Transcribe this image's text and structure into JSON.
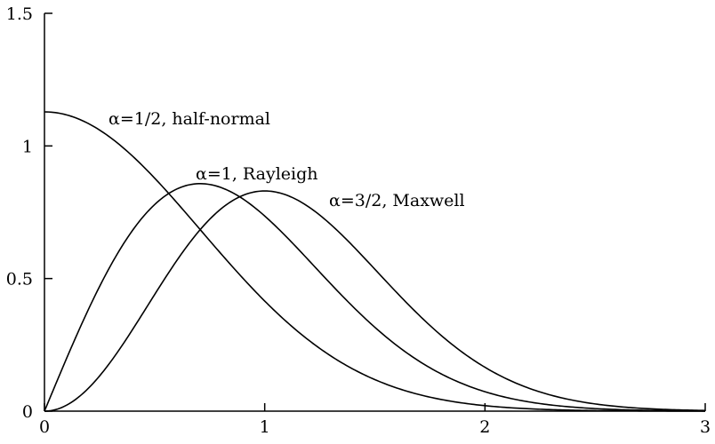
{
  "chart_data": {
    "type": "line",
    "title": "",
    "xlabel": "",
    "ylabel": "",
    "xlim": [
      0,
      3
    ],
    "ylim": [
      0,
      1.5
    ],
    "x_ticks": [
      0,
      1,
      2,
      3
    ],
    "x_tick_labels": [
      "0",
      "1",
      "2",
      "3"
    ],
    "y_ticks": [
      0,
      0.5,
      1,
      1.5
    ],
    "y_tick_labels": [
      "0",
      "0.5",
      "1",
      "1.5"
    ],
    "grid": false,
    "legend": "none",
    "series": [
      {
        "label": "α=1/2, half-normal",
        "alpha": 0.5,
        "x": [
          0,
          0.25,
          0.5,
          0.75,
          1,
          1.25,
          1.5,
          1.75,
          2,
          2.25,
          2.5,
          2.75,
          3
        ],
        "y": [
          1.128,
          1.059,
          0.879,
          0.643,
          0.415,
          0.237,
          0.119,
          0.053,
          0.021,
          0.007,
          0.002,
          0.001,
          0.0
        ]
      },
      {
        "label": "α=1, Rayleigh",
        "alpha": 1,
        "x": [
          0,
          0.25,
          0.5,
          0.75,
          1,
          1.25,
          1.5,
          1.75,
          2,
          2.25,
          2.5,
          2.75,
          3
        ],
        "y": [
          0,
          0.47,
          0.779,
          0.852,
          0.736,
          0.523,
          0.316,
          0.163,
          0.073,
          0.028,
          0.01,
          0.003,
          0.001
        ]
      },
      {
        "label": "α=3/2, Maxwell",
        "alpha": 1.5,
        "x": [
          0,
          0.25,
          0.5,
          0.75,
          1,
          1.25,
          1.5,
          1.75,
          2,
          2.25,
          2.5,
          2.75,
          3
        ],
        "y": [
          0,
          0.094,
          0.311,
          0.568,
          0.83,
          0.81,
          0.631,
          0.434,
          0.265,
          0.145,
          0.072,
          0.031,
          0.012
        ]
      }
    ]
  }
}
